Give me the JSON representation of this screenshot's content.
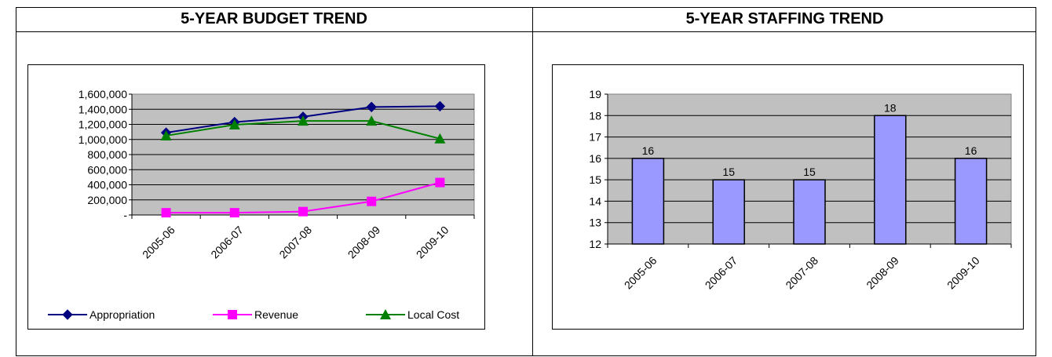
{
  "panels": {
    "budget_title": "5-YEAR BUDGET TREND",
    "staffing_title": "5-YEAR STAFFING TREND"
  },
  "colors": {
    "plot_bg": "#c0c0c0",
    "appropriation": "#000080",
    "revenue": "#ff00ff",
    "local_cost": "#008000",
    "bar_fill": "#9999ff"
  },
  "chart_data": [
    {
      "type": "line",
      "title": "5-YEAR BUDGET TREND",
      "categories": [
        "2005-06",
        "2006-07",
        "2007-08",
        "2008-09",
        "2009-10"
      ],
      "y_tick_labels": [
        "-",
        "200,000",
        "400,000",
        "600,000",
        "800,000",
        "1,000,000",
        "1,200,000",
        "1,400,000",
        "1,600,000"
      ],
      "ylim": [
        0,
        1600000
      ],
      "grid": true,
      "legend_position": "bottom",
      "series": [
        {
          "name": "Appropriation",
          "marker": "diamond",
          "values": [
            1090000,
            1230000,
            1300000,
            1430000,
            1440000
          ]
        },
        {
          "name": "Revenue",
          "marker": "square",
          "values": [
            30000,
            30000,
            45000,
            180000,
            430000
          ]
        },
        {
          "name": "Local Cost",
          "marker": "triangle",
          "values": [
            1050000,
            1195000,
            1245000,
            1245000,
            1010000
          ]
        }
      ]
    },
    {
      "type": "bar",
      "title": "5-YEAR STAFFING TREND",
      "categories": [
        "2005-06",
        "2006-07",
        "2007-08",
        "2008-09",
        "2009-10"
      ],
      "values": [
        16,
        15,
        15,
        18,
        16
      ],
      "data_labels": [
        "16",
        "15",
        "15",
        "18",
        "16"
      ],
      "y_tick_labels": [
        "12",
        "13",
        "14",
        "15",
        "16",
        "17",
        "18",
        "19"
      ],
      "ylim": [
        12,
        19
      ],
      "grid": true
    }
  ]
}
